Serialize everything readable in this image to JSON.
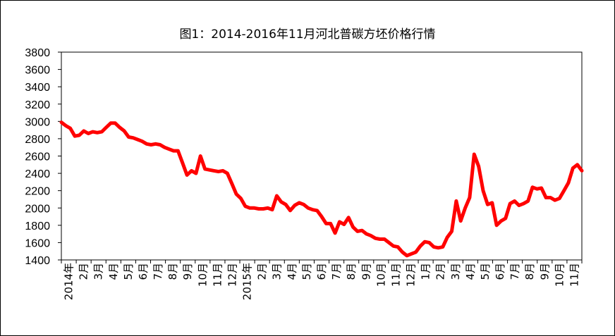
{
  "chart_data": {
    "type": "line",
    "title": "图1：2014-2016年11月河北普碳方坯价格行情",
    "xlabel": "",
    "ylabel": "",
    "ylim": [
      1400,
      3800
    ],
    "yticks": [
      1400,
      1600,
      1800,
      2000,
      2200,
      2400,
      2600,
      2800,
      3000,
      3200,
      3400,
      3600,
      3800
    ],
    "xticks": [
      "2014年",
      "2月",
      "3月",
      "4月",
      "5月",
      "6月",
      "7月",
      "8月",
      "9月",
      "10月",
      "11月",
      "12月",
      "2015年",
      "2月",
      "3月",
      "4月",
      "5月",
      "6月",
      "7月",
      "8月",
      "9月",
      "10月",
      "11月",
      "12月",
      "1月",
      "2月",
      "3月",
      "4月",
      "5月",
      "6月",
      "7月",
      "8月",
      "9月",
      "10月",
      "11月"
    ],
    "grid": false,
    "line_color": "#ff0000",
    "series": [
      {
        "values": [
          2990,
          2950,
          2920,
          2830,
          2840,
          2890,
          2860,
          2880,
          2870,
          2880,
          2930,
          2980,
          2980,
          2930,
          2890,
          2820,
          2810,
          2790,
          2770,
          2740,
          2730,
          2740,
          2730,
          2700,
          2680,
          2660,
          2660,
          2520,
          2380,
          2430,
          2400,
          2600,
          2450,
          2440,
          2430,
          2420,
          2430,
          2400,
          2280,
          2160,
          2110,
          2020,
          2000,
          2000,
          1990,
          1990,
          2000,
          1980,
          2140,
          2070,
          2040,
          1970,
          2030,
          2060,
          2040,
          2000,
          1980,
          1970,
          1900,
          1820,
          1820,
          1710,
          1840,
          1810,
          1890,
          1780,
          1730,
          1740,
          1700,
          1680,
          1650,
          1640,
          1640,
          1600,
          1560,
          1550,
          1490,
          1450,
          1470,
          1490,
          1560,
          1610,
          1600,
          1550,
          1540,
          1550,
          1660,
          1730,
          2080,
          1850,
          2000,
          2120,
          2620,
          2480,
          2200,
          2040,
          2060,
          1800,
          1850,
          1880,
          2050,
          2080,
          2030,
          2050,
          2080,
          2240,
          2220,
          2230,
          2120,
          2120,
          2090,
          2110,
          2200,
          2290,
          2460,
          2500,
          2430
        ]
      }
    ]
  }
}
